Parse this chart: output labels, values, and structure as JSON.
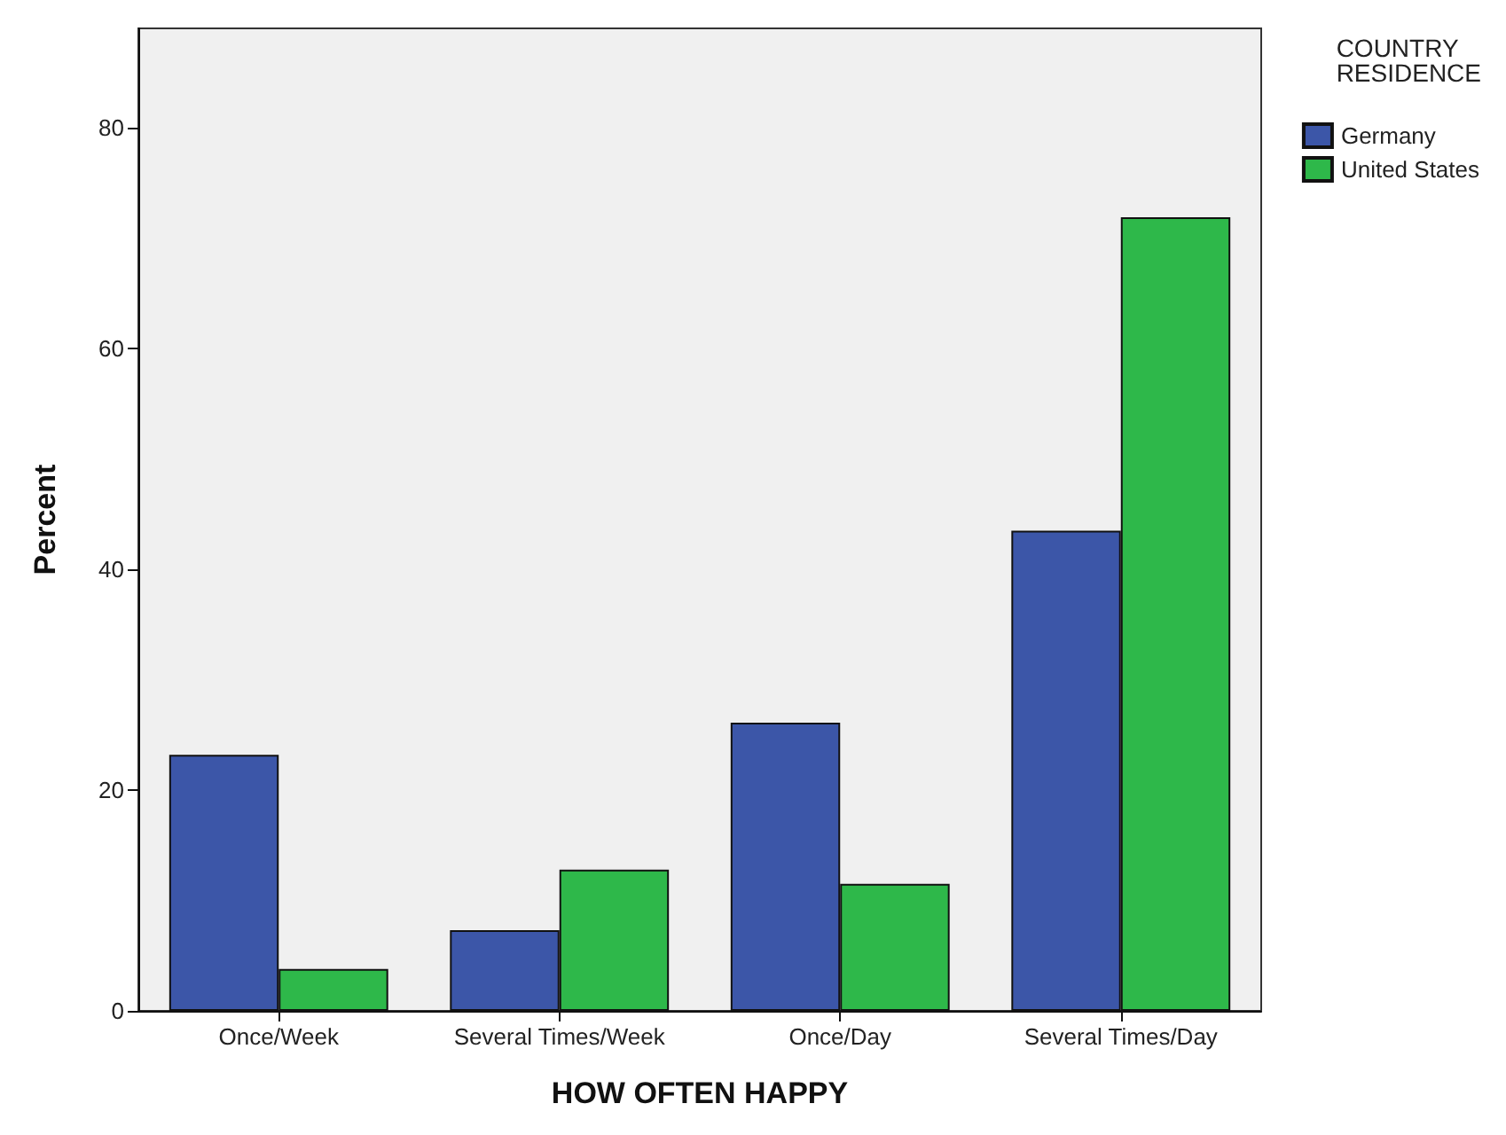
{
  "chart_data": {
    "type": "bar",
    "xlabel": "HOW OFTEN HAPPY",
    "ylabel": "Percent",
    "legend_title": "COUNTRY RESIDENCE",
    "legend": "top right",
    "categories": [
      "Once/Week",
      "Several Times/Week",
      "Once/Day",
      "Several Times/Day"
    ],
    "series": [
      {
        "name": "Germany",
        "color": "#3c56a8",
        "values": [
          23.2,
          7.3,
          26.1,
          43.5
        ]
      },
      {
        "name": "United States",
        "color": "#2eb84a",
        "values": [
          3.8,
          12.8,
          11.5,
          71.9
        ]
      }
    ],
    "ylim": [
      0,
      89
    ],
    "yticks": [
      0,
      20,
      40,
      60,
      80
    ],
    "grid": false
  }
}
